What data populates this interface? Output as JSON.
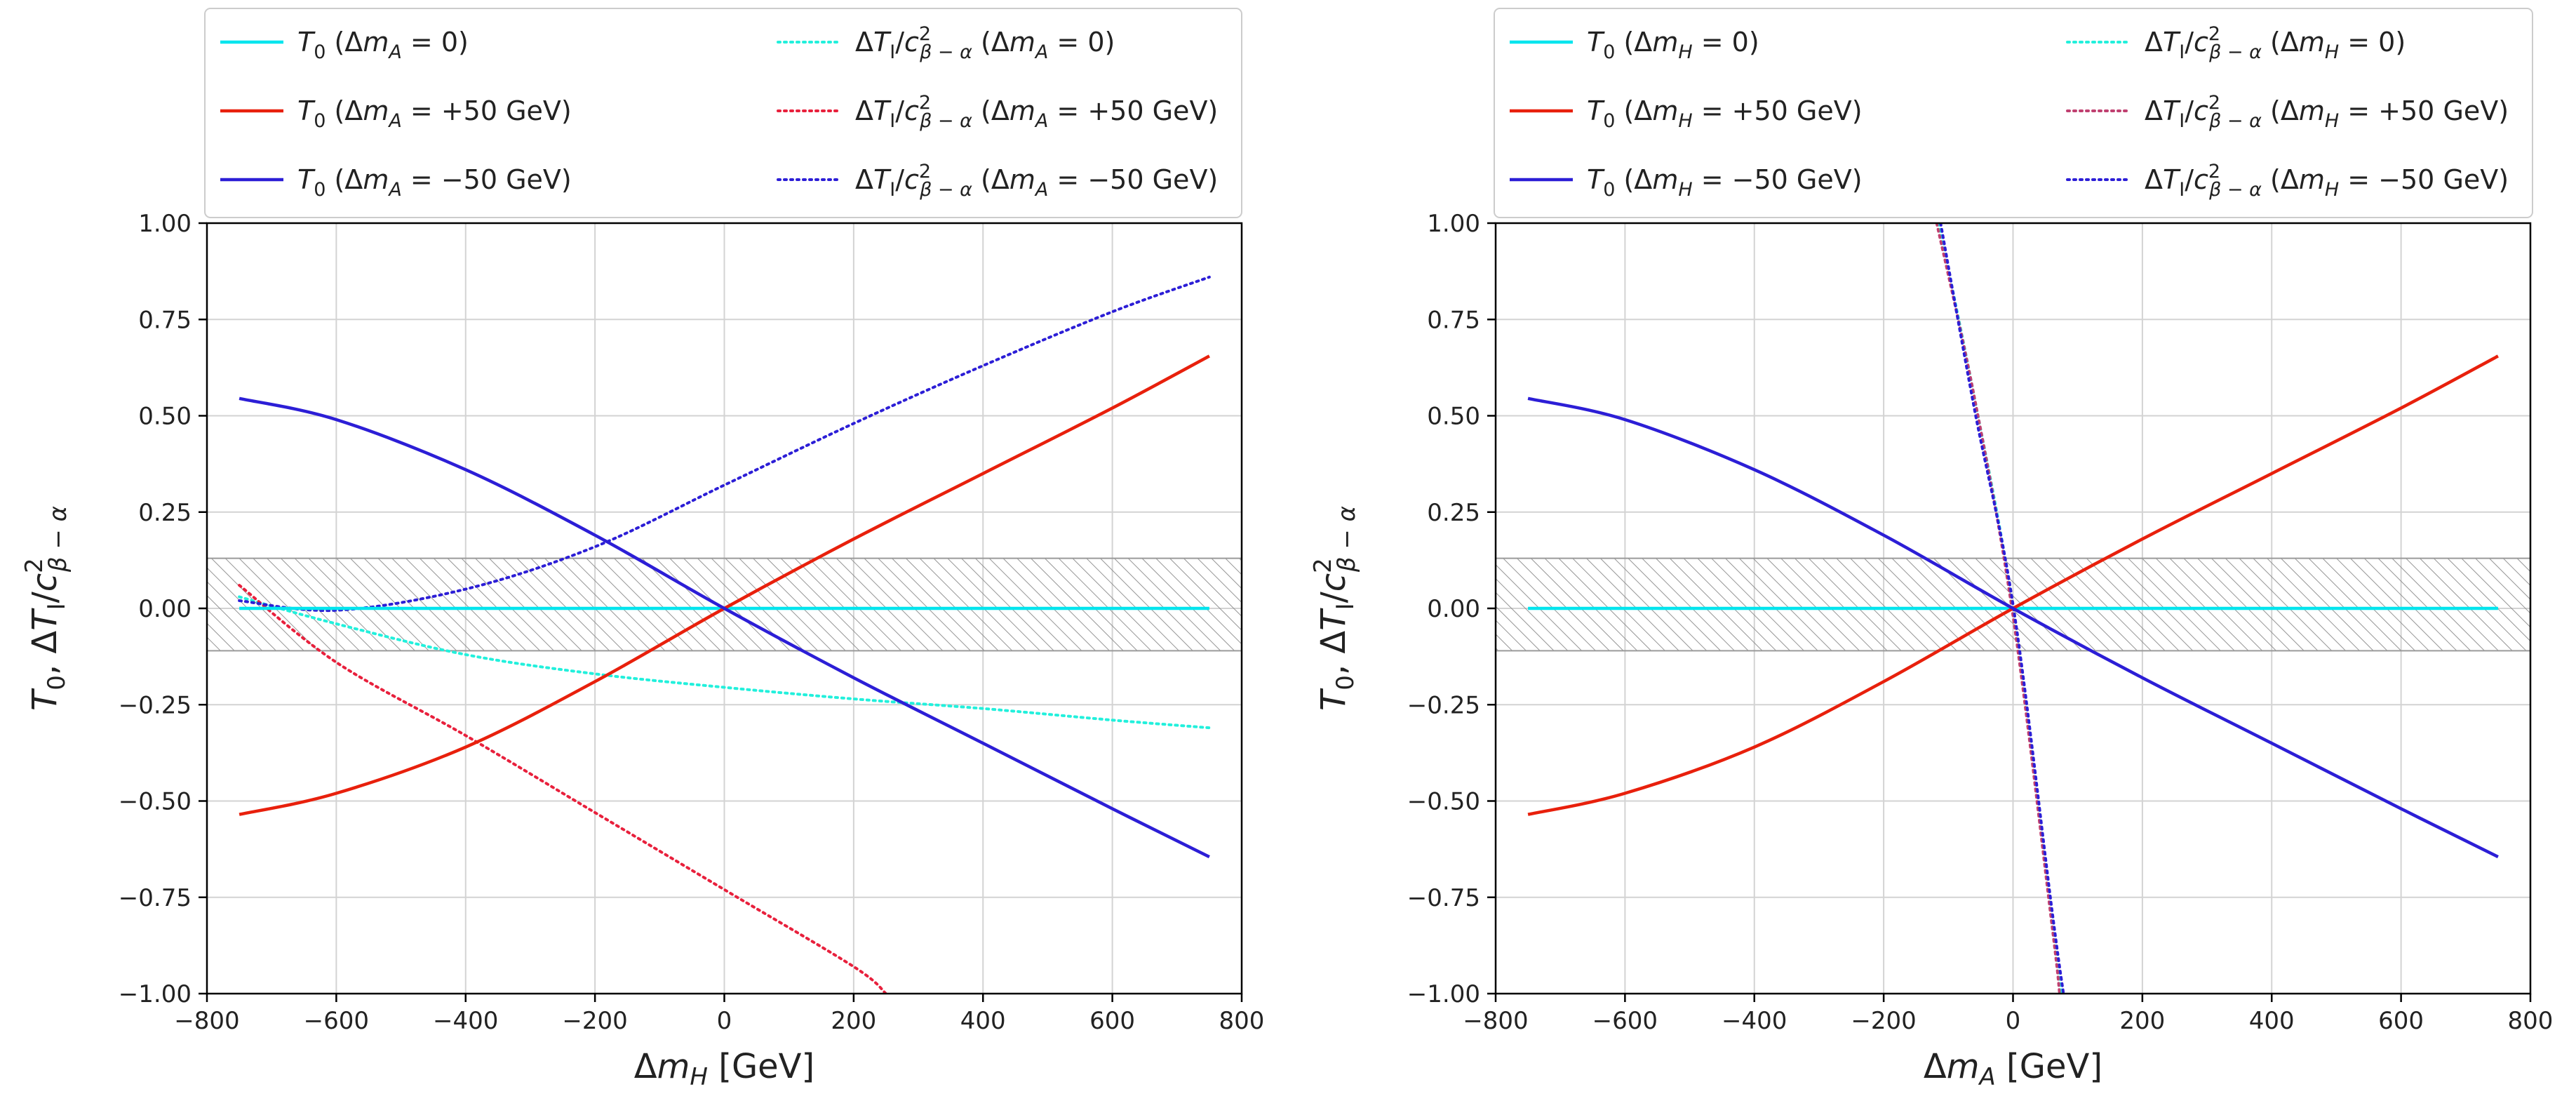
{
  "chart_data": [
    {
      "type": "line",
      "xlabel": "Δm_H [GeV]",
      "ylabel": "T₀,  ΔT_I/c²_{β−α}",
      "xlim": [
        -800,
        800
      ],
      "ylim": [
        -1.0,
        1.0
      ],
      "xticks": [
        -800,
        -600,
        -400,
        -200,
        0,
        200,
        400,
        600,
        800
      ],
      "xtick_labels": [
        "−800",
        "−600",
        "−400",
        "−200",
        "0",
        "200",
        "400",
        "600",
        "800"
      ],
      "yticks": [
        -1.0,
        -0.75,
        -0.5,
        -0.25,
        0.0,
        0.25,
        0.5,
        0.75,
        1.0
      ],
      "ytick_labels": [
        "−1.00",
        "−0.75",
        "−0.50",
        "−0.25",
        "0.00",
        "0.25",
        "0.50",
        "0.75",
        "1.00"
      ],
      "grid": true,
      "legend_position": "above plot, two columns",
      "band": {
        "y_low": -0.11,
        "y_high": 0.13,
        "style": "grey hatched"
      },
      "series": [
        {
          "label": "T_0 (Δm_A = 0)",
          "color": "#00e5ee",
          "style": "solid",
          "x": [
            -750,
            750
          ],
          "y": [
            0.0,
            0.0
          ]
        },
        {
          "label": "T_0 (Δm_A = +50 GeV)",
          "color": "#e8200c",
          "style": "solid",
          "x": [
            -750,
            -600,
            -400,
            -200,
            0,
            200,
            400,
            600,
            750
          ],
          "y": [
            -0.535,
            -0.48,
            -0.36,
            -0.19,
            0.0,
            0.18,
            0.35,
            0.52,
            0.655
          ]
        },
        {
          "label": "T_0 (Δm_A = −50 GeV)",
          "color": "#2c1ed6",
          "style": "solid",
          "x": [
            -750,
            -600,
            -400,
            -200,
            0,
            200,
            400,
            600,
            750
          ],
          "y": [
            0.545,
            0.49,
            0.36,
            0.19,
            0.0,
            -0.18,
            -0.35,
            -0.52,
            -0.645
          ]
        },
        {
          "label": "ΔT_I/c²_{β−α} (Δm_A = 0)",
          "color": "#22f0dc",
          "style": "dotted",
          "x": [
            -750,
            -600,
            -400,
            -200,
            0,
            200,
            400,
            600,
            750
          ],
          "y": [
            0.03,
            -0.04,
            -0.12,
            -0.17,
            -0.205,
            -0.235,
            -0.26,
            -0.29,
            -0.31
          ]
        },
        {
          "label": "ΔT_I/c²_{β−α} (Δm_A = +50 GeV)",
          "color": "#e8203c",
          "style": "dotted",
          "x": [
            -750,
            -600,
            -400,
            -200,
            0,
            200,
            250
          ],
          "y": [
            0.06,
            -0.14,
            -0.33,
            -0.53,
            -0.73,
            -0.93,
            -1.0
          ]
        },
        {
          "label": "ΔT_I/c²_{β−α} (Δm_A = −50 GeV)",
          "color": "#2c1ed6",
          "style": "dotted",
          "x": [
            -750,
            -600,
            -400,
            -200,
            0,
            200,
            400,
            600,
            750
          ],
          "y": [
            0.02,
            -0.005,
            0.05,
            0.16,
            0.32,
            0.48,
            0.63,
            0.77,
            0.86
          ]
        }
      ]
    },
    {
      "type": "line",
      "xlabel": "Δm_A [GeV]",
      "ylabel": "T₀,  ΔT_I/c²_{β−α}",
      "xlim": [
        -800,
        800
      ],
      "ylim": [
        -1.0,
        1.0
      ],
      "xticks": [
        -800,
        -600,
        -400,
        -200,
        0,
        200,
        400,
        600,
        800
      ],
      "xtick_labels": [
        "−800",
        "−600",
        "−400",
        "−200",
        "0",
        "200",
        "400",
        "600",
        "800"
      ],
      "yticks": [
        -1.0,
        -0.75,
        -0.5,
        -0.25,
        0.0,
        0.25,
        0.5,
        0.75,
        1.0
      ],
      "ytick_labels": [
        "−1.00",
        "−0.75",
        "−0.50",
        "−0.25",
        "0.00",
        "0.25",
        "0.50",
        "0.75",
        "1.00"
      ],
      "grid": true,
      "legend_position": "above plot, two columns",
      "band": {
        "y_low": -0.11,
        "y_high": 0.13,
        "style": "grey hatched"
      },
      "series": [
        {
          "label": "T_0 (Δm_H = 0)",
          "color": "#00e5ee",
          "style": "solid",
          "x": [
            -750,
            750
          ],
          "y": [
            0.0,
            0.0
          ]
        },
        {
          "label": "T_0 (Δm_H = +50 GeV)",
          "color": "#e8200c",
          "style": "solid",
          "x": [
            -750,
            -600,
            -400,
            -200,
            0,
            200,
            400,
            600,
            750
          ],
          "y": [
            -0.535,
            -0.48,
            -0.36,
            -0.19,
            0.0,
            0.18,
            0.35,
            0.52,
            0.655
          ]
        },
        {
          "label": "T_0 (Δm_H = −50 GeV)",
          "color": "#2c1ed6",
          "style": "solid",
          "x": [
            -750,
            -600,
            -400,
            -200,
            0,
            200,
            400,
            600,
            750
          ],
          "y": [
            0.545,
            0.49,
            0.36,
            0.19,
            0.0,
            -0.18,
            -0.35,
            -0.52,
            -0.645
          ]
        },
        {
          "label": "ΔT_I/c²_{β−α} (Δm_H = 0)",
          "color": "#22f0dc",
          "style": "dotted",
          "x": [
            -115,
            -60,
            0,
            60,
            75
          ],
          "y": [
            1.0,
            0.55,
            0.0,
            -0.8,
            -1.0
          ]
        },
        {
          "label": "ΔT_I/c²_{β−α} (Δm_H = +50 GeV)",
          "color": "#c04070",
          "style": "dotted",
          "x": [
            -118,
            -60,
            0,
            60,
            72
          ],
          "y": [
            1.0,
            0.55,
            -0.02,
            -0.82,
            -1.0
          ]
        },
        {
          "label": "ΔT_I/c²_{β−α} (Δm_H = −50 GeV)",
          "color": "#2c1ed6",
          "style": "dotted",
          "x": [
            -112,
            -60,
            0,
            60,
            78
          ],
          "y": [
            1.0,
            0.52,
            0.01,
            -0.78,
            -1.0
          ]
        }
      ]
    }
  ]
}
